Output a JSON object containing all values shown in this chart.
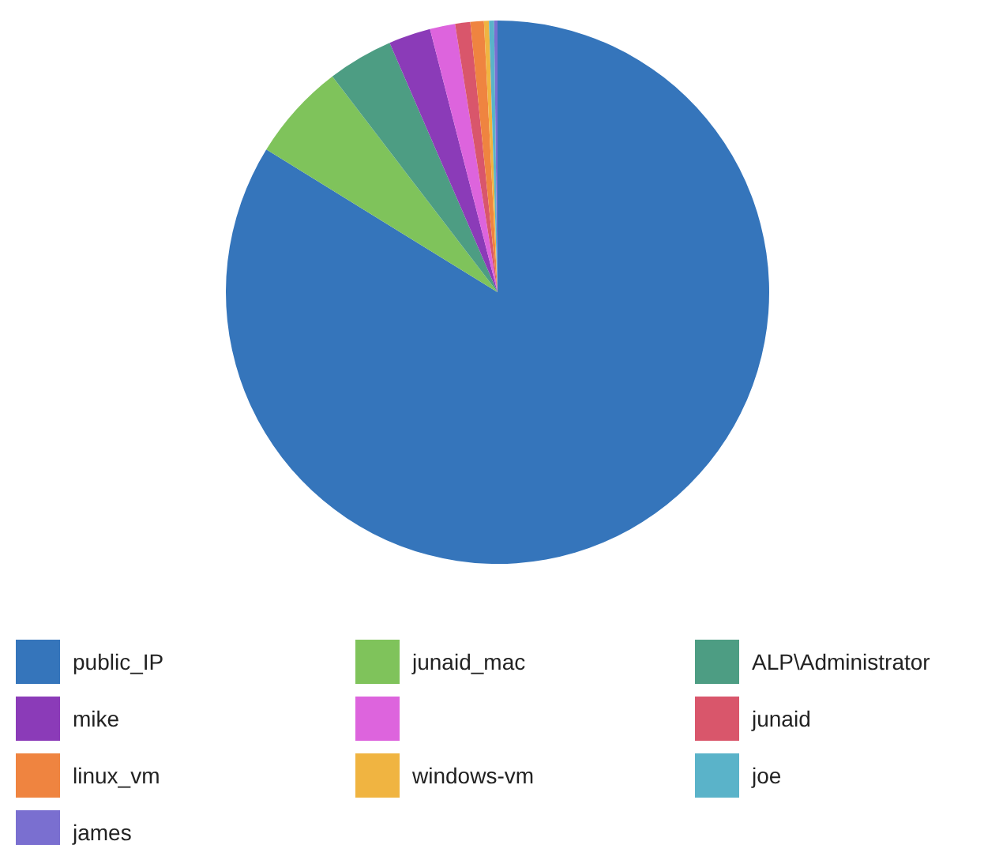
{
  "chart_data": {
    "type": "pie",
    "categories": [
      "public_IP",
      "junaid_mac",
      "ALP\\Administrator",
      "mike",
      null,
      "junaid",
      "linux_vm",
      "windows-vm",
      "joe",
      "james"
    ],
    "values": [
      83.8,
      5.8,
      3.9,
      2.5,
      1.5,
      0.9,
      0.8,
      0.3,
      0.3,
      0.2
    ],
    "colors": [
      "#3575bb",
      "#7fc35b",
      "#4d9d83",
      "#8b3bb8",
      "#dd64dd",
      "#d9566b",
      "#ef8440",
      "#f0b441",
      "#5ab3c9",
      "#7a6fd0"
    ],
    "legend": "bottom"
  }
}
